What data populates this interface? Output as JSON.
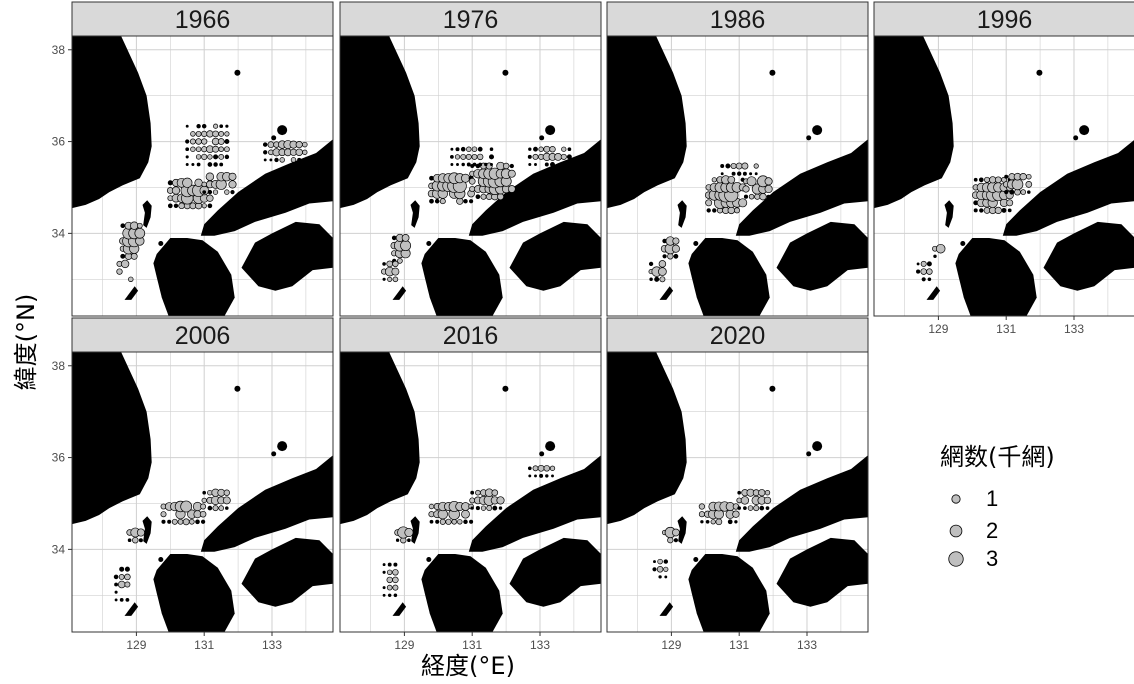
{
  "figure": {
    "x_title": "経度(°E)",
    "y_title": "緯度(°N)"
  },
  "legend": {
    "title": "網数(千網)",
    "items": [
      {
        "label": "1",
        "value": 1
      },
      {
        "label": "2",
        "value": 2
      },
      {
        "label": "3",
        "value": 3
      }
    ]
  },
  "chart_data": {
    "type": "scatter",
    "map_extent": {
      "lon": [
        127.1,
        134.8
      ],
      "lat": [
        32.2,
        38.3
      ]
    },
    "x_ticks": [
      129,
      131,
      133
    ],
    "y_ticks": [
      34,
      36,
      38
    ],
    "x_tick_labels": [
      "129",
      "131",
      "133"
    ],
    "y_tick_labels": [
      "34",
      "36",
      "38"
    ],
    "colors": {
      "land": "#000000",
      "bubble_fill": "#bfbfbf",
      "bubble_stroke": "#000000",
      "strip": "#d9d9d9",
      "grid": "#d0d0d0"
    },
    "panels": [
      {
        "year": "1966",
        "clusters": [
          {
            "region": "tsushima-west",
            "lon": [
              128.6,
              129.2
            ],
            "lat": [
              33.5,
              34.2
            ],
            "peak": 3.0
          },
          {
            "region": "goto-west",
            "lon": [
              128.5,
              129.0
            ],
            "lat": [
              33.0,
              33.5
            ],
            "peak": 1.8
          },
          {
            "region": "genkai-nada",
            "lon": [
              130.0,
              131.2
            ],
            "lat": [
              34.6,
              35.2
            ],
            "peak": 2.6
          },
          {
            "region": "sanin-offshore",
            "lon": [
              131.0,
              132.0
            ],
            "lat": [
              34.9,
              35.4
            ],
            "peak": 2.0
          },
          {
            "region": "north-scatter",
            "lon": [
              130.5,
              131.8
            ],
            "lat": [
              35.5,
              36.4
            ],
            "peak": 0.8
          },
          {
            "region": "oki-east",
            "lon": [
              132.8,
              134.1
            ],
            "lat": [
              35.6,
              36.1
            ],
            "peak": 1.2
          }
        ]
      },
      {
        "year": "1976",
        "clusters": [
          {
            "region": "tsushima-west",
            "lon": [
              128.7,
              129.2
            ],
            "lat": [
              33.4,
              34.0
            ],
            "peak": 2.4
          },
          {
            "region": "goto-west",
            "lon": [
              128.4,
              128.9
            ],
            "lat": [
              33.0,
              33.4
            ],
            "peak": 1.5
          },
          {
            "region": "genkai-nada",
            "lon": [
              129.8,
              131.0
            ],
            "lat": [
              34.7,
              35.3
            ],
            "peak": 3.0
          },
          {
            "region": "sanin-offshore",
            "lon": [
              131.0,
              132.3
            ],
            "lat": [
              34.8,
              35.5
            ],
            "peak": 2.6
          },
          {
            "region": "north-scatter",
            "lon": [
              130.4,
              131.7
            ],
            "lat": [
              35.5,
              35.9
            ],
            "peak": 0.6
          },
          {
            "region": "oki-east",
            "lon": [
              132.7,
              133.9
            ],
            "lat": [
              35.5,
              35.9
            ],
            "peak": 0.9
          }
        ]
      },
      {
        "year": "1986",
        "clusters": [
          {
            "region": "tsushima-west",
            "lon": [
              128.8,
              129.2
            ],
            "lat": [
              33.5,
              33.9
            ],
            "peak": 2.4
          },
          {
            "region": "goto-west",
            "lon": [
              128.4,
              128.9
            ],
            "lat": [
              33.0,
              33.4
            ],
            "peak": 1.6
          },
          {
            "region": "genkai-nada",
            "lon": [
              130.1,
              131.2
            ],
            "lat": [
              34.5,
              35.2
            ],
            "peak": 3.0
          },
          {
            "region": "sanin-offshore",
            "lon": [
              131.2,
              132.0
            ],
            "lat": [
              34.8,
              35.3
            ],
            "peak": 2.4
          },
          {
            "region": "north-scatter",
            "lon": [
              130.5,
              131.6
            ],
            "lat": [
              35.3,
              35.6
            ],
            "peak": 0.7
          }
        ]
      },
      {
        "year": "1996",
        "clusters": [
          {
            "region": "tsushima-west",
            "lon": [
              128.9,
              129.2
            ],
            "lat": [
              33.5,
              33.8
            ],
            "peak": 1.6
          },
          {
            "region": "goto-west",
            "lon": [
              128.4,
              128.9
            ],
            "lat": [
              33.0,
              33.4
            ],
            "peak": 0.8
          },
          {
            "region": "genkai-nada",
            "lon": [
              130.1,
              131.2
            ],
            "lat": [
              34.5,
              35.2
            ],
            "peak": 2.2
          },
          {
            "region": "sanin-offshore",
            "lon": [
              131.0,
              131.7
            ],
            "lat": [
              34.9,
              35.3
            ],
            "peak": 1.8
          }
        ]
      },
      {
        "year": "2006",
        "clusters": [
          {
            "region": "tsushima-west",
            "lon": [
              128.8,
              129.2
            ],
            "lat": [
              34.2,
              34.5
            ],
            "peak": 2.0
          },
          {
            "region": "goto-west",
            "lon": [
              128.4,
              128.9
            ],
            "lat": [
              32.9,
              33.7
            ],
            "peak": 0.8
          },
          {
            "region": "genkai-nada",
            "lon": [
              129.8,
              131.0
            ],
            "lat": [
              34.6,
              35.1
            ],
            "peak": 2.0
          },
          {
            "region": "sanin-offshore",
            "lon": [
              131.0,
              131.8
            ],
            "lat": [
              34.9,
              35.3
            ],
            "peak": 1.4
          }
        ]
      },
      {
        "year": "2016",
        "clusters": [
          {
            "region": "tsushima-west",
            "lon": [
              128.8,
              129.2
            ],
            "lat": [
              34.2,
              34.5
            ],
            "peak": 1.8
          },
          {
            "region": "goto-west",
            "lon": [
              128.4,
              128.9
            ],
            "lat": [
              33.0,
              33.7
            ],
            "peak": 0.7
          },
          {
            "region": "genkai-nada",
            "lon": [
              129.8,
              131.0
            ],
            "lat": [
              34.6,
              35.1
            ],
            "peak": 1.9
          },
          {
            "region": "sanin-offshore",
            "lon": [
              131.0,
              132.0
            ],
            "lat": [
              34.9,
              35.3
            ],
            "peak": 1.6
          },
          {
            "region": "oki-east",
            "lon": [
              132.7,
              133.5
            ],
            "lat": [
              35.6,
              35.9
            ],
            "peak": 0.6
          }
        ]
      },
      {
        "year": "2020",
        "clusters": [
          {
            "region": "tsushima-west",
            "lon": [
              128.8,
              129.2
            ],
            "lat": [
              34.2,
              34.5
            ],
            "peak": 1.6
          },
          {
            "region": "goto-west",
            "lon": [
              128.5,
              128.9
            ],
            "lat": [
              33.4,
              33.8
            ],
            "peak": 0.6
          },
          {
            "region": "genkai-nada",
            "lon": [
              129.9,
              131.0
            ],
            "lat": [
              34.6,
              35.1
            ],
            "peak": 1.8
          },
          {
            "region": "sanin-offshore",
            "lon": [
              131.0,
              131.9
            ],
            "lat": [
              34.9,
              35.3
            ],
            "peak": 1.6
          }
        ]
      }
    ]
  }
}
